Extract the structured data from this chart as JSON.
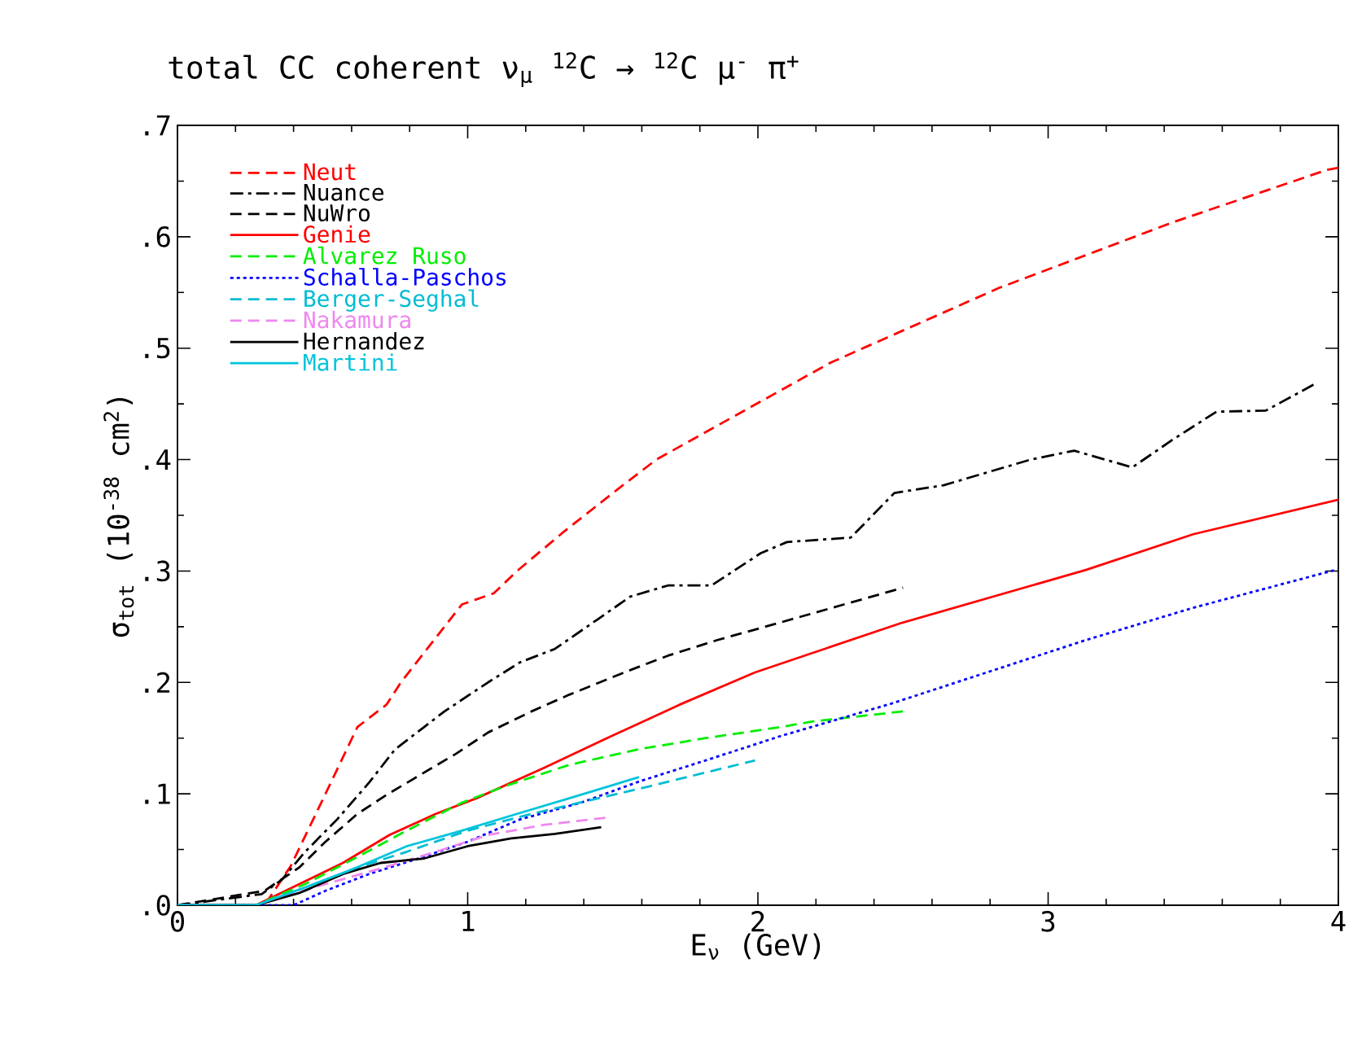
{
  "chart_data": {
    "type": "line",
    "title": "total CC coherent ν$_{μ}$ $^{12}$C → $^{12}$C μ$^{-}$ π$^{+}$",
    "xlabel": "E$_{ν}$ (GeV)",
    "ylabel": "σ$_{tot}$ (10$^{-38}$ cm$^{2}$)",
    "xlim": [
      0,
      4
    ],
    "ylim": [
      0,
      0.7
    ],
    "xticks": [
      0,
      1,
      2,
      3,
      4
    ],
    "yticks": [
      {
        "value": 0,
        "label": ".0"
      },
      {
        "value": 0.1,
        "label": ".1"
      },
      {
        "value": 0.2,
        "label": ".2"
      },
      {
        "value": 0.3,
        "label": ".3"
      },
      {
        "value": 0.4,
        "label": ".4"
      },
      {
        "value": 0.5,
        "label": ".5"
      },
      {
        "value": 0.6,
        "label": ".6"
      },
      {
        "value": 0.7,
        "label": ".7"
      }
    ],
    "grid": false,
    "legend": "top left",
    "marker": "none",
    "series": [
      {
        "name": "Neut",
        "color": "#ff0000",
        "line_style": "dashed",
        "x": [
          0,
          0.3,
          0.39,
          0.51,
          0.62,
          0.72,
          0.77,
          0.86,
          0.98,
          1.09,
          1.17,
          1.33,
          1.52,
          1.65,
          2.25,
          2.83,
          3.43,
          3.96,
          4.0
        ],
        "values": [
          0,
          0,
          0.035,
          0.1,
          0.16,
          0.18,
          0.2,
          0.23,
          0.27,
          0.28,
          0.3,
          0.335,
          0.374,
          0.4,
          0.487,
          0.554,
          0.613,
          0.66,
          0.662
        ]
      },
      {
        "name": "Nuance",
        "color": "#000000",
        "line_style": "dashdot",
        "x": [
          0,
          0.29,
          0.36,
          0.44,
          0.55,
          0.66,
          0.75,
          0.85,
          0.92,
          1.07,
          1.18,
          1.3,
          1.45,
          1.56,
          1.69,
          1.84,
          2.01,
          2.1,
          2.32,
          2.47,
          2.64,
          2.94,
          3.09,
          3.29,
          3.43,
          3.58,
          3.75,
          3.92
        ],
        "values": [
          0,
          0.01,
          0.023,
          0.048,
          0.077,
          0.11,
          0.14,
          0.16,
          0.174,
          0.2,
          0.218,
          0.23,
          0.257,
          0.277,
          0.287,
          0.287,
          0.316,
          0.326,
          0.33,
          0.37,
          0.377,
          0.4,
          0.408,
          0.393,
          0.418,
          0.443,
          0.444,
          0.468
        ]
      },
      {
        "name": "NuWro",
        "color": "#000000",
        "line_style": "dashed",
        "x": [
          0,
          0.3,
          0.42,
          0.51,
          0.62,
          0.72,
          0.83,
          0.96,
          1.07,
          1.22,
          1.35,
          1.54,
          1.69,
          1.86,
          2.08,
          2.5
        ],
        "values": [
          0,
          0.013,
          0.034,
          0.057,
          0.082,
          0.099,
          0.116,
          0.136,
          0.155,
          0.174,
          0.189,
          0.209,
          0.224,
          0.238,
          0.254,
          0.285
        ]
      },
      {
        "name": "Genie",
        "color": "#ff0000",
        "line_style": "solid",
        "x": [
          0,
          0.27,
          0.42,
          0.57,
          0.73,
          0.89,
          1.03,
          1.26,
          1.48,
          1.73,
          1.99,
          2.49,
          3.13,
          3.5,
          4.0
        ],
        "values": [
          0,
          0,
          0.019,
          0.038,
          0.063,
          0.082,
          0.096,
          0.123,
          0.15,
          0.18,
          0.209,
          0.253,
          0.301,
          0.333,
          0.364
        ]
      },
      {
        "name": "Alvarez Ruso",
        "color": "#00ee00",
        "line_style": "dashed",
        "x": [
          0,
          0.27,
          0.44,
          0.61,
          0.79,
          0.98,
          1.13,
          1.35,
          1.59,
          1.82,
          2.08,
          2.19,
          2.5
        ],
        "values": [
          0,
          0,
          0.019,
          0.042,
          0.067,
          0.092,
          0.107,
          0.126,
          0.14,
          0.15,
          0.16,
          0.165,
          0.174
        ]
      },
      {
        "name": "Schalla-Paschos",
        "color": "#0000ff",
        "line_style": "dotted",
        "x": [
          0,
          0.4,
          0.51,
          0.66,
          0.83,
          1.0,
          1.18,
          1.39,
          1.59,
          1.82,
          2.08,
          2.46,
          3.13,
          3.5,
          3.99
        ],
        "values": [
          0,
          0,
          0.013,
          0.028,
          0.042,
          0.057,
          0.077,
          0.092,
          0.111,
          0.13,
          0.152,
          0.181,
          0.238,
          0.267,
          0.301
        ]
      },
      {
        "name": "Berger-Seghal",
        "color": "#00bcd4",
        "line_style": "dashed",
        "x": [
          0,
          0.27,
          0.44,
          0.61,
          0.79,
          1.0,
          1.22,
          1.45,
          1.63,
          1.99
        ],
        "values": [
          0,
          0,
          0.013,
          0.033,
          0.048,
          0.067,
          0.082,
          0.096,
          0.107,
          0.13
        ]
      },
      {
        "name": "Nakamura",
        "color": "#ee88ee",
        "line_style": "dashed",
        "x": [
          0,
          0.27,
          0.51,
          0.7,
          0.89,
          1.07,
          1.26,
          1.49
        ],
        "values": [
          0,
          0,
          0.019,
          0.033,
          0.048,
          0.063,
          0.072,
          0.079
        ]
      },
      {
        "name": "Hernandez",
        "color": "#000000",
        "line_style": "solid",
        "x": [
          0,
          0.27,
          0.42,
          0.57,
          0.7,
          0.85,
          1.0,
          1.15,
          1.3,
          1.46
        ],
        "values": [
          0,
          0,
          0.011,
          0.028,
          0.038,
          0.042,
          0.053,
          0.06,
          0.064,
          0.07
        ]
      },
      {
        "name": "Martini",
        "color": "#00c4dc",
        "line_style": "solid",
        "x": [
          0,
          0.27,
          0.44,
          0.61,
          0.79,
          0.98,
          1.17,
          1.35,
          1.59
        ],
        "values": [
          0,
          0,
          0.016,
          0.033,
          0.053,
          0.067,
          0.082,
          0.096,
          0.115
        ]
      }
    ]
  }
}
